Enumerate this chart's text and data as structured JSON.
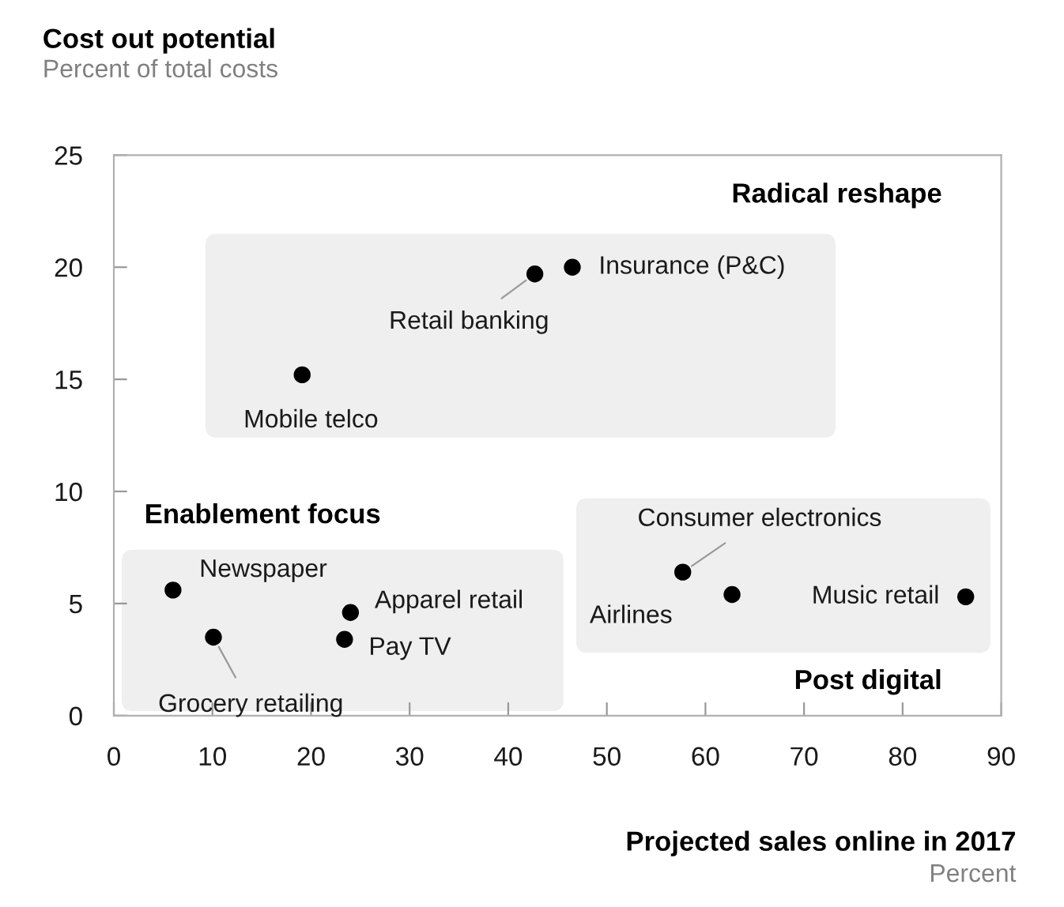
{
  "chart_data": {
    "type": "scatter",
    "title": "Cost out potential",
    "subtitle": "Percent of total costs",
    "xlabel": "Projected sales online in 2017",
    "xlim": [
      0,
      90
    ],
    "xticks": [
      0,
      10,
      20,
      30,
      40,
      50,
      60,
      70,
      80,
      90
    ],
    "ylim": [
      0,
      25
    ],
    "yticks": [
      0,
      5,
      10,
      15,
      20,
      25
    ],
    "grid": false,
    "legend": false,
    "marker": "circle",
    "series": [
      {
        "color": "#000000",
        "x": [
          46.5,
          42.7,
          19.1,
          6.0,
          10.1,
          24.0,
          23.4,
          57.7,
          62.7,
          86.4
        ],
        "values": [
          20.0,
          19.7,
          15.2,
          5.6,
          3.5,
          4.6,
          3.4,
          6.4,
          5.4,
          5.3
        ]
      }
    ],
    "annotations": [
      {
        "text": "Insurance (P&C)",
        "x": 46.5,
        "y": 20.0
      },
      {
        "text": "Retail banking",
        "x": 42.7,
        "y": 19.7
      },
      {
        "text": "Mobile telco",
        "x": 19.1,
        "y": 15.2
      },
      {
        "text": "Newspaper",
        "x": 6.0,
        "y": 5.6
      },
      {
        "text": "Grocery retailing",
        "x": 10.1,
        "y": 3.5
      },
      {
        "text": "Apparel retail",
        "x": 24.0,
        "y": 4.6
      },
      {
        "text": "Pay TV",
        "x": 23.4,
        "y": 3.4
      },
      {
        "text": "Consumer electronics",
        "x": 57.7,
        "y": 6.4
      },
      {
        "text": "Airlines",
        "x": 62.7,
        "y": 5.4
      },
      {
        "text": "Music retail",
        "x": 86.4,
        "y": 5.3
      },
      "Radical reshape",
      "Enablement focus",
      "Post digital",
      "Percent"
    ]
  }
}
